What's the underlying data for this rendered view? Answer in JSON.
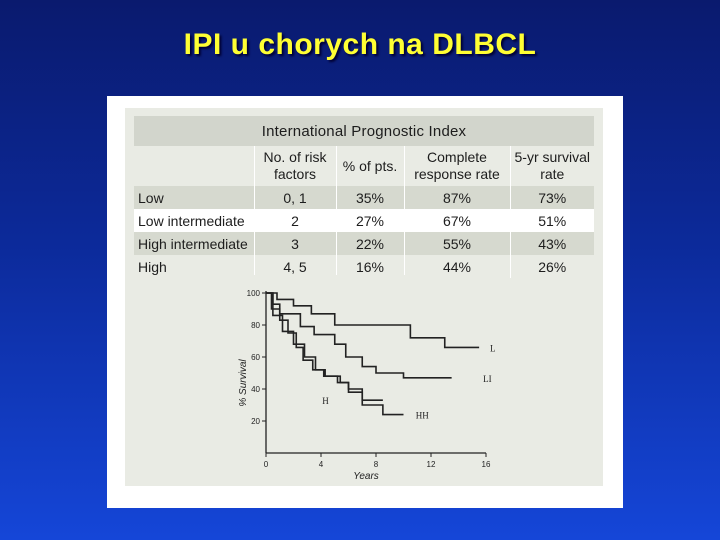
{
  "slide": {
    "title": "IPI u chorych na DLBCL"
  },
  "table": {
    "title": "International Prognostic Index",
    "columns": [
      {
        "line1": "No. of risk",
        "line2": "factors"
      },
      {
        "line1": "% of pts.",
        "line2": ""
      },
      {
        "line1": "Complete",
        "line2": "response rate"
      },
      {
        "line1": "5-yr survival",
        "line2": "rate"
      }
    ],
    "rows": [
      {
        "label": "Low",
        "factors": "0, 1",
        "pts": "35%",
        "cr": "87%",
        "surv": "73%"
      },
      {
        "label": "Low intermediate",
        "factors": "2",
        "pts": "27%",
        "cr": "67%",
        "surv": "51%"
      },
      {
        "label": "High intermediate",
        "factors": "3",
        "pts": "22%",
        "cr": "55%",
        "surv": "43%"
      },
      {
        "label": "High",
        "factors": "4, 5",
        "pts": "16%",
        "cr": "44%",
        "surv": "26%"
      }
    ]
  },
  "chart_data": {
    "type": "line",
    "step": true,
    "xlabel": "Years",
    "ylabel": "% Survival",
    "xlim": [
      0,
      16
    ],
    "ylim": [
      0,
      100
    ],
    "xticks": [
      0,
      4,
      8,
      12,
      16
    ],
    "yticks": [
      20,
      40,
      60,
      80,
      100
    ],
    "xtick_labels": [
      "0",
      "4",
      "8",
      "12",
      "16"
    ],
    "ytick_labels": [
      "20",
      "40",
      "60",
      "80",
      "100"
    ],
    "grid": false,
    "line_color": "#222222",
    "series": [
      {
        "name": "L",
        "x": [
          0,
          0.8,
          2,
          3.3,
          5,
          10.5,
          13,
          15.5
        ],
        "y": [
          100,
          96,
          92,
          87,
          80,
          72,
          66,
          66
        ]
      },
      {
        "name": "LI",
        "x": [
          0,
          0.5,
          1,
          2.5,
          3.5,
          5,
          5.8,
          7,
          8,
          10,
          13.5
        ],
        "y": [
          100,
          93,
          87,
          79,
          74,
          68,
          60,
          54,
          50,
          47,
          47
        ]
      },
      {
        "name": "H",
        "x": [
          0,
          0.4,
          1,
          1.6,
          2.2,
          2.7,
          3.4,
          4.2,
          5.2,
          6,
          7,
          8.5
        ],
        "y": [
          100,
          90,
          83,
          75,
          66,
          58,
          52,
          48,
          44,
          40,
          33,
          33
        ]
      },
      {
        "name": "HH",
        "x": [
          0,
          0.5,
          1.2,
          2,
          2.8,
          3.6,
          4.3,
          5.4,
          6,
          7,
          8.5,
          10
        ],
        "y": [
          100,
          86,
          76,
          68,
          60,
          52,
          48,
          44,
          38,
          30,
          24,
          24
        ]
      }
    ],
    "series_labels": [
      {
        "text": "L",
        "x": 16,
        "y": 66
      },
      {
        "text": "LI",
        "x": 15.5,
        "y": 47
      },
      {
        "text": "H",
        "x": 3.8,
        "y": 33
      },
      {
        "text": "HH",
        "x": 10.6,
        "y": 24
      }
    ]
  }
}
